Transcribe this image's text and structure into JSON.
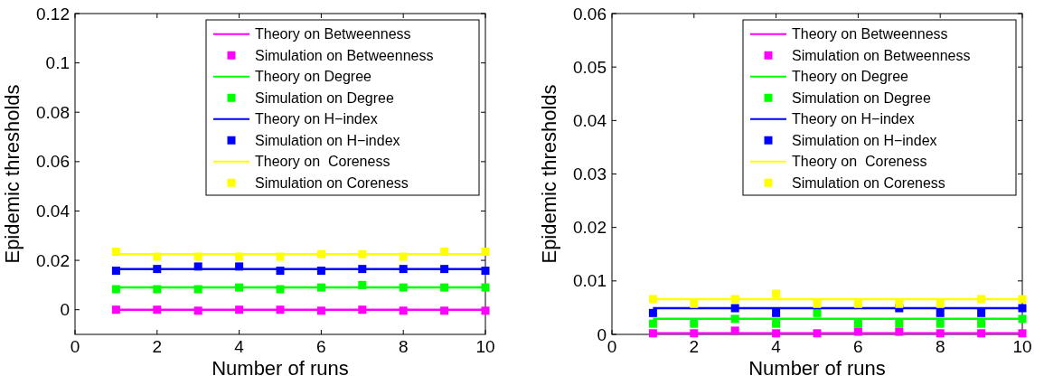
{
  "chart_data": [
    {
      "type": "line",
      "xlabel": "Number of runs",
      "ylabel": "Epidemic thresholds",
      "x": [
        1,
        2,
        3,
        4,
        5,
        6,
        7,
        8,
        9,
        10
      ],
      "xlim": [
        0,
        10
      ],
      "xticks": [
        0,
        2,
        4,
        6,
        8,
        10
      ],
      "ylim": [
        -0.01,
        0.12
      ],
      "yticks": [
        0,
        0.02,
        0.04,
        0.06,
        0.08,
        0.1,
        0.12
      ],
      "legend": "top right",
      "grid": false,
      "series": [
        {
          "name": "Theory on Betweenness",
          "color": "#ff00ff",
          "marker": "none",
          "values": [
            0,
            0,
            0,
            0,
            0,
            0,
            0,
            0,
            0,
            0
          ]
        },
        {
          "name": "Simulation on Betweenness",
          "type": "scatter",
          "color": "#ff00ff",
          "marker": "square",
          "values": [
            0,
            0,
            -0.0004,
            0,
            0,
            -0.0004,
            0,
            -0.0004,
            -0.0004,
            -0.0004
          ]
        },
        {
          "name": "Theory on Degree",
          "type": "line",
          "color": "#00ff00",
          "marker": "none",
          "values": [
            0.009,
            0.009,
            0.009,
            0.009,
            0.009,
            0.009,
            0.009,
            0.009,
            0.009,
            0.009
          ]
        },
        {
          "name": "Simulation on Degree",
          "type": "scatter",
          "color": "#00ff00",
          "marker": "square",
          "values": [
            0.0083,
            0.0083,
            0.0083,
            0.009,
            0.0083,
            0.009,
            0.01,
            0.009,
            0.009,
            0.009
          ]
        },
        {
          "name": "Theory on H−index",
          "type": "line",
          "color": "#0000ff",
          "marker": "none",
          "values": [
            0.0165,
            0.0165,
            0.0165,
            0.0165,
            0.0165,
            0.0165,
            0.0165,
            0.0165,
            0.0165,
            0.0165
          ]
        },
        {
          "name": "Simulation on H−index",
          "type": "scatter",
          "color": "#0000ff",
          "marker": "square",
          "values": [
            0.0158,
            0.0165,
            0.0175,
            0.0175,
            0.0158,
            0.0158,
            0.0165,
            0.0165,
            0.0165,
            0.0158
          ]
        },
        {
          "name": "Theory on  Coreness",
          "type": "line",
          "color": "#ffff00",
          "marker": "none",
          "values": [
            0.0225,
            0.0225,
            0.0225,
            0.0225,
            0.0225,
            0.0225,
            0.0225,
            0.0225,
            0.0225,
            0.0225
          ]
        },
        {
          "name": "Simulation on Coreness",
          "type": "scatter",
          "color": "#ffff00",
          "marker": "square",
          "values": [
            0.0235,
            0.0215,
            0.0215,
            0.0215,
            0.0215,
            0.0225,
            0.0225,
            0.0215,
            0.0235,
            0.0235
          ]
        }
      ]
    },
    {
      "type": "line",
      "xlabel": "Number of runs",
      "ylabel": "Epidemic thresholds",
      "x": [
        1,
        2,
        3,
        4,
        5,
        6,
        7,
        8,
        9,
        10
      ],
      "xlim": [
        0,
        10
      ],
      "xticks": [
        0,
        2,
        4,
        6,
        8,
        10
      ],
      "ylim": [
        0,
        0.06
      ],
      "yticks": [
        0,
        0.01,
        0.02,
        0.03,
        0.04,
        0.05,
        0.06
      ],
      "legend": "top right",
      "grid": false,
      "series": [
        {
          "name": "Theory on Betweenness",
          "color": "#ff00ff",
          "marker": "none",
          "values": [
            0.0002,
            0.0002,
            0.0002,
            0.0002,
            0.0002,
            0.0002,
            0.0002,
            0.0002,
            0.0002,
            0.0002
          ]
        },
        {
          "name": "Simulation on Betweenness",
          "type": "scatter",
          "color": "#ff00ff",
          "marker": "square",
          "values": [
            0.0002,
            0.0002,
            0.0007,
            0.0002,
            0.0002,
            0.0005,
            0.0005,
            0.0002,
            0.0002,
            0.0002
          ]
        },
        {
          "name": "Theory on Degree",
          "type": "line",
          "color": "#00ff00",
          "marker": "none",
          "values": [
            0.0029,
            0.0029,
            0.0029,
            0.0029,
            0.0029,
            0.0029,
            0.0029,
            0.0029,
            0.0029,
            0.0029
          ]
        },
        {
          "name": "Simulation on Degree",
          "type": "scatter",
          "color": "#00ff00",
          "marker": "square",
          "values": [
            0.002,
            0.002,
            0.0029,
            0.002,
            0.004,
            0.002,
            0.002,
            0.002,
            0.002,
            0.0029
          ]
        },
        {
          "name": "Theory on H−index",
          "type": "line",
          "color": "#0000ff",
          "marker": "none",
          "values": [
            0.0049,
            0.0049,
            0.0049,
            0.0049,
            0.0049,
            0.0049,
            0.0049,
            0.0049,
            0.0049,
            0.0049
          ]
        },
        {
          "name": "Simulation on H−index",
          "type": "scatter",
          "color": "#0000ff",
          "marker": "square",
          "values": [
            0.004,
            null,
            0.0049,
            0.004,
            null,
            null,
            0.0049,
            0.004,
            0.004,
            0.0049
          ]
        },
        {
          "name": "Theory on  Coreness",
          "type": "line",
          "color": "#ffff00",
          "marker": "none",
          "values": [
            0.0066,
            0.0066,
            0.0066,
            0.0066,
            0.0066,
            0.0066,
            0.0066,
            0.0066,
            0.0066,
            0.0066
          ]
        },
        {
          "name": "Simulation on Coreness",
          "type": "scatter",
          "color": "#ffff00",
          "marker": "square",
          "values": [
            0.0066,
            0.0057,
            0.0066,
            0.0076,
            0.0057,
            0.0057,
            0.0057,
            0.0057,
            0.0066,
            0.0066
          ]
        }
      ]
    }
  ]
}
